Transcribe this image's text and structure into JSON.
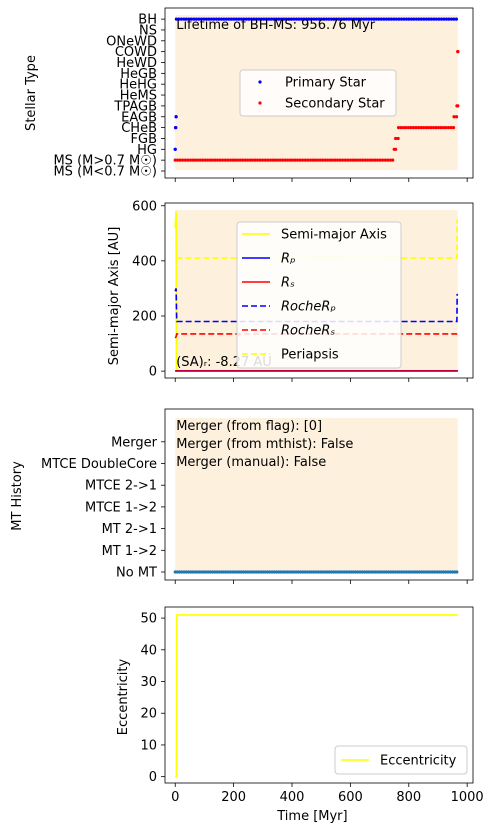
{
  "chart_data": [
    {
      "type": "scatter",
      "ylabel": "Stellar Type",
      "y_categories": [
        "MS (M<0.7 M☉)",
        "MS (M>0.7 M☉)",
        "HG",
        "FGB",
        "CHeB",
        "EAGB",
        "TPAGB",
        "HeMS",
        "HeHG",
        "HeGB",
        "HeWD",
        "COWD",
        "ONeWD",
        "NS",
        "BH"
      ],
      "annotation": "Lifetime of BH-MS: 956.76 Myr",
      "xlim": [
        -35,
        1020
      ],
      "legend": "center-right",
      "series": [
        {
          "name": "Primary Star",
          "color": "#0000ff",
          "segments": [
            {
              "x_start": 0,
              "x_end": 0,
              "y": "HG"
            },
            {
              "x_start": 1,
              "x_end": 2,
              "y": "CHeB"
            },
            {
              "x_start": 3,
              "x_end": 3,
              "y": "EAGB"
            },
            {
              "x_start": 4,
              "x_end": 968,
              "y": "BH"
            }
          ]
        },
        {
          "name": "Secondary Star",
          "color": "#ff0000",
          "segments": [
            {
              "x_start": 0,
              "x_end": 750,
              "y": "MS (M>0.7 M☉)"
            },
            {
              "x_start": 750,
              "x_end": 755,
              "y": "HG"
            },
            {
              "x_start": 755,
              "x_end": 765,
              "y": "FGB"
            },
            {
              "x_start": 765,
              "x_end": 955,
              "y": "CHeB"
            },
            {
              "x_start": 955,
              "x_end": 965,
              "y": "EAGB"
            },
            {
              "x_start": 965,
              "x_end": 968,
              "y": "TPAGB"
            },
            {
              "x_start": 968,
              "x_end": 968,
              "y": "COWD"
            }
          ]
        }
      ]
    },
    {
      "type": "line",
      "ylabel": "Semi-major Axis [AU]",
      "ylim": [
        -25,
        610
      ],
      "yticks": [
        0,
        200,
        400,
        600
      ],
      "annotation": "(SA)ᵣ: -8.27 AU",
      "legend": "top-center",
      "series": [
        {
          "name": "Semi-major Axis",
          "color": "#ffff00",
          "dash": "solid",
          "points": [
            [
              0,
              520
            ],
            [
              3,
              580
            ],
            [
              5,
              0
            ],
            [
              968,
              0
            ]
          ]
        },
        {
          "name": "Rₚ",
          "color": "#0000ff",
          "dash": "solid",
          "points": [
            [
              0,
              1
            ],
            [
              968,
              1
            ]
          ]
        },
        {
          "name": "Rₛ",
          "color": "#ff0000",
          "dash": "solid",
          "points": [
            [
              0,
              0
            ],
            [
              968,
              0
            ]
          ]
        },
        {
          "name": "RocheRₚ",
          "color": "#0000ff",
          "dash": "dashed",
          "points": [
            [
              0,
              290
            ],
            [
              3,
              300
            ],
            [
              5,
              180
            ],
            [
              965,
              180
            ],
            [
              966,
              280
            ]
          ]
        },
        {
          "name": "RocheRₛ",
          "color": "#ff0000",
          "dash": "dashed",
          "points": [
            [
              0,
              120
            ],
            [
              3,
              125
            ],
            [
              5,
              135
            ],
            [
              968,
              135
            ]
          ]
        },
        {
          "name": "Periapsis",
          "color": "#ffff00",
          "dash": "dashed",
          "points": [
            [
              0,
              520
            ],
            [
              3,
              580
            ],
            [
              5,
              410
            ],
            [
              965,
              410
            ],
            [
              966,
              550
            ]
          ]
        }
      ]
    },
    {
      "type": "scatter",
      "ylabel": "MT History",
      "y_categories": [
        "No MT",
        "MT 1->2",
        "MT 2->1",
        "MTCE 1->2",
        "MTCE 2->1",
        "MTCE DoubleCore",
        "Merger"
      ],
      "annotations": [
        "Merger (from flag): [0]",
        "Merger (from mthist): False",
        "Merger (manual): False"
      ],
      "series": [
        {
          "name": "",
          "color": "#1f77b4",
          "segments": [
            {
              "x_start": 0,
              "x_end": 968,
              "y": "No MT"
            }
          ]
        }
      ]
    },
    {
      "type": "line",
      "xlabel": "Time [Myr]",
      "ylabel": "Eccentricity",
      "xticks": [
        0,
        200,
        400,
        600,
        800,
        1000
      ],
      "ylim": [
        -2,
        53.5
      ],
      "yticks": [
        0,
        10,
        20,
        30,
        40,
        50
      ],
      "legend": "bottom-right",
      "series": [
        {
          "name": "Eccentricity",
          "color": "#ffff00",
          "points": [
            [
              0,
              0
            ],
            [
              4,
              0
            ],
            [
              5,
              51
            ],
            [
              968,
              51
            ]
          ]
        }
      ]
    }
  ]
}
